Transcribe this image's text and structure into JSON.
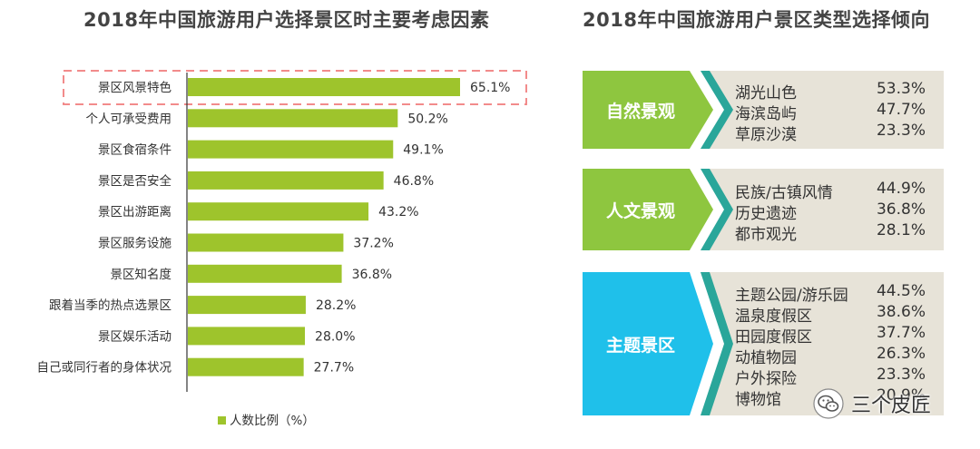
{
  "left_chart": {
    "title": "2018年中国旅游用户选择景区时主要考虑因素",
    "legend_label": "人数比例（%）"
  },
  "right_chart": {
    "title": "2018年中国旅游用户景区类型选择倾向",
    "groups": [
      {
        "name": "自然景观",
        "color": "#8ec63f",
        "items": [
          {
            "name": "湖光山色",
            "value": "53.3%"
          },
          {
            "name": "海滨岛屿",
            "value": "47.7%"
          },
          {
            "name": "草原沙漠",
            "value": "23.3%"
          }
        ]
      },
      {
        "name": "人文景观",
        "color": "#8ec63f",
        "items": [
          {
            "name": "民族/古镇风情",
            "value": "44.9%"
          },
          {
            "name": "历史遗迹",
            "value": "36.8%"
          },
          {
            "name": "都市观光",
            "value": "28.1%"
          }
        ]
      },
      {
        "name": "主题景区",
        "color": "#1fc0ea",
        "items": [
          {
            "name": "主题公园/游乐园",
            "value": "44.5%"
          },
          {
            "name": "温泉度假区",
            "value": "38.6%"
          },
          {
            "name": "田园度假区",
            "value": "37.7%"
          },
          {
            "name": "动植物园",
            "value": "26.3%"
          },
          {
            "name": "户外探险",
            "value": "23.3%"
          },
          {
            "name": "博物馆",
            "value": "20.9%"
          }
        ]
      }
    ]
  },
  "watermark": {
    "text": "三个皮匠",
    "icon": "wechat-icon"
  },
  "colors": {
    "bar": "#9ec42c",
    "highlight": "#f28b8b",
    "teal_accent": "#2aa69a"
  },
  "chart_data": {
    "type": "bar",
    "orientation": "horizontal",
    "title": "2018年中国旅游用户选择景区时主要考虑因素",
    "categories": [
      "景区风景特色",
      "个人可承受费用",
      "景区食宿条件",
      "景区是否安全",
      "景区出游距离",
      "景区服务设施",
      "景区知名度",
      "跟着当季的热点选景区",
      "景区娱乐活动",
      "自己或同行者的身体状况"
    ],
    "series": [
      {
        "name": "人数比例（%）",
        "values": [
          65.1,
          50.2,
          49.1,
          46.8,
          43.2,
          37.2,
          36.8,
          28.2,
          28.0,
          27.7
        ]
      }
    ],
    "value_labels": [
      "65.1%",
      "50.2%",
      "49.1%",
      "46.8%",
      "43.2%",
      "37.2%",
      "36.8%",
      "28.2%",
      "28.0%",
      "27.7%"
    ],
    "highlighted_category": "景区风景特色",
    "legend_position": "bottom-left"
  }
}
